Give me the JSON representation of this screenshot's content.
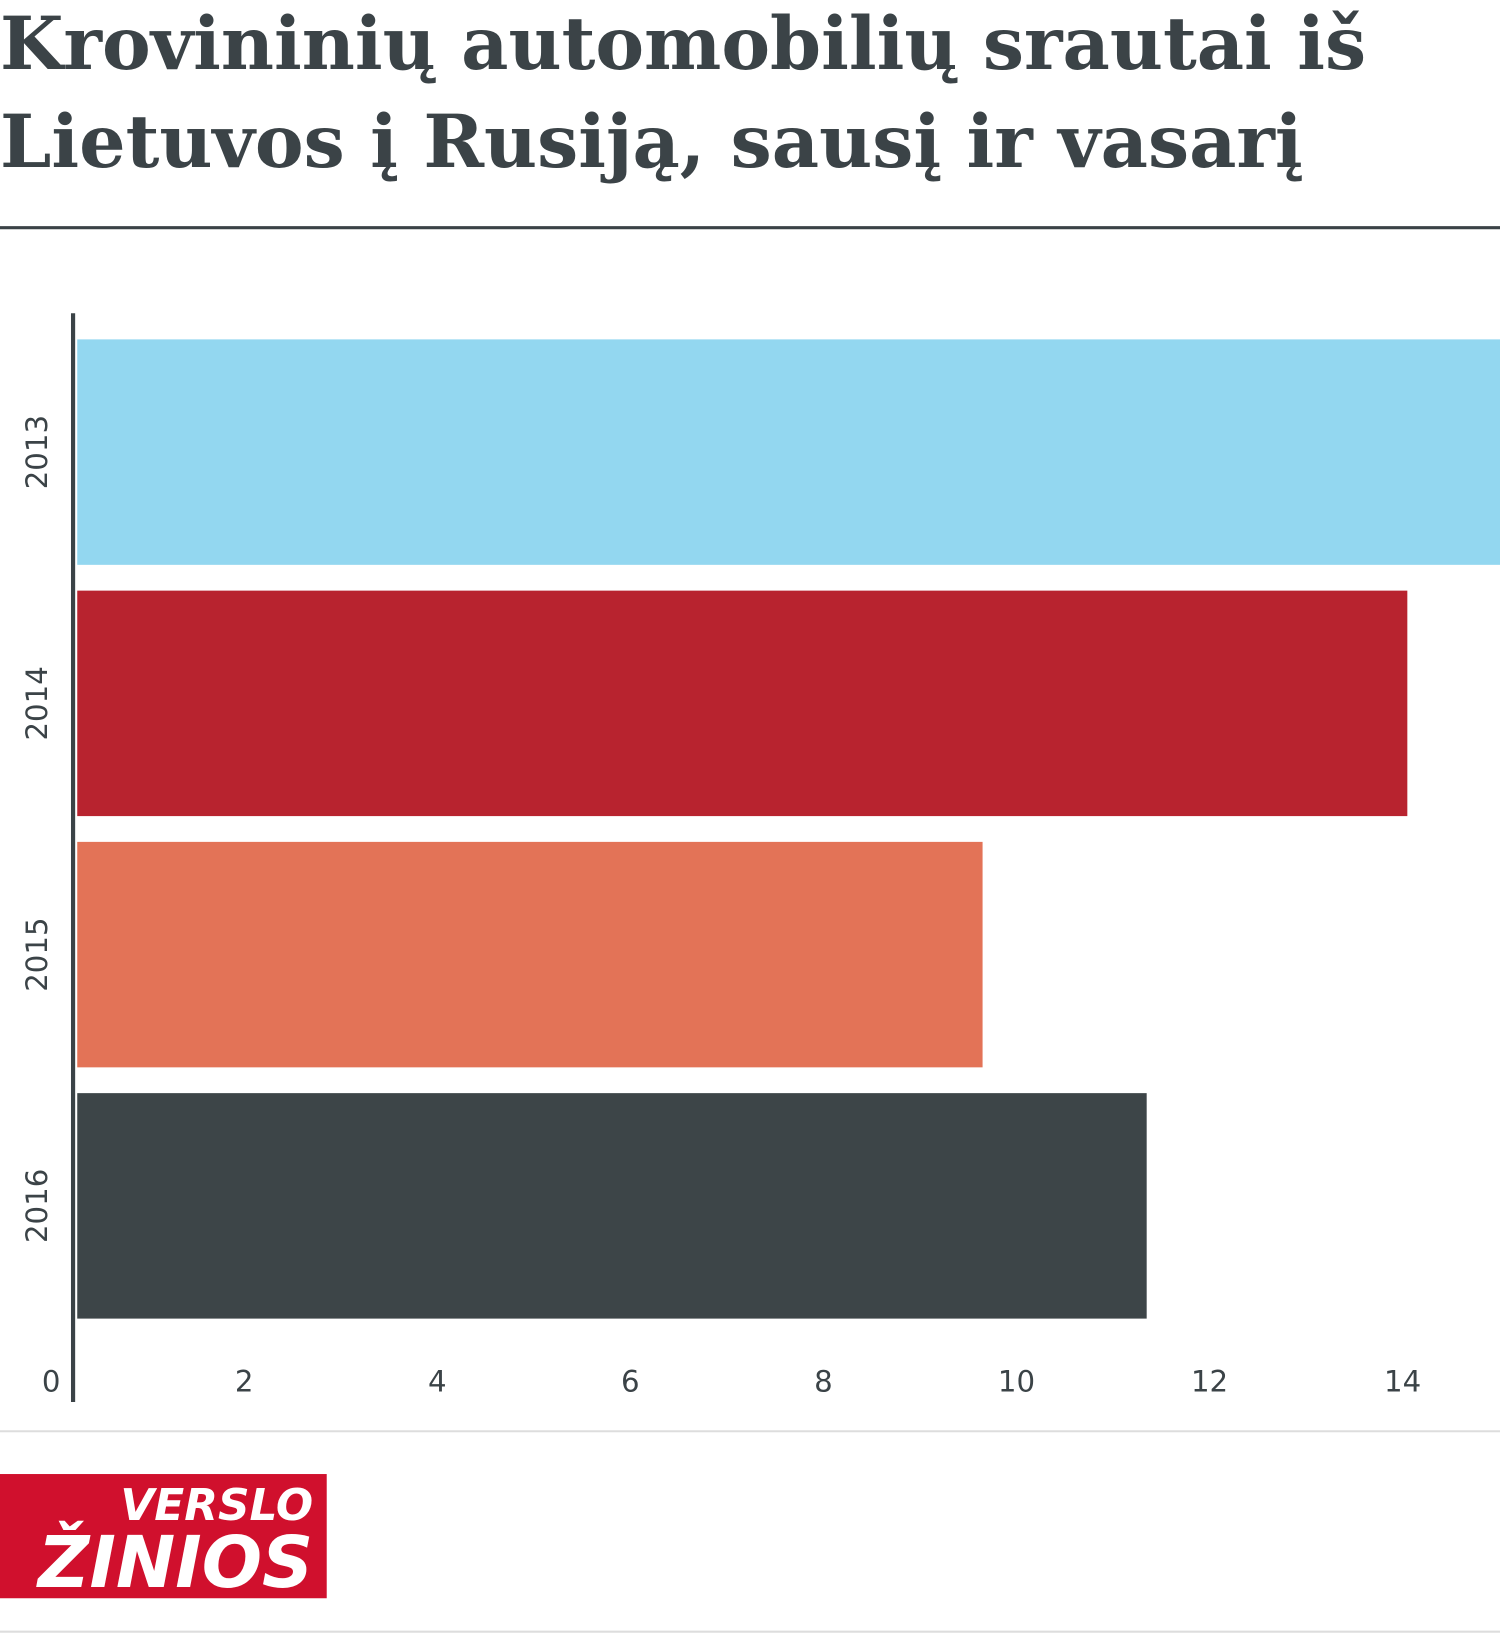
{
  "chart_data": {
    "type": "barh",
    "title": "Krovininių automobilių srautai iš Lietuvos į Rusiją, sausį ir vasarį",
    "title_lines": [
      "Krovininių automobilių srautai iš",
      "Lietuvos į Rusiją, sausį ir vasarį"
    ],
    "categories": [
      "2013",
      "2014",
      "2015",
      "2016"
    ],
    "values": [
      15,
      13.8,
      9.4,
      11.1
    ],
    "colors": [
      "#93d7f0",
      "#b8232f",
      "#e37357",
      "#3d4548"
    ],
    "xlim": [
      0,
      14.76
    ],
    "xticks": [
      0,
      2,
      4,
      6,
      8,
      10,
      12,
      14
    ]
  },
  "logo": {
    "line1": "VERSLO",
    "line2": "ŽINIOS"
  }
}
